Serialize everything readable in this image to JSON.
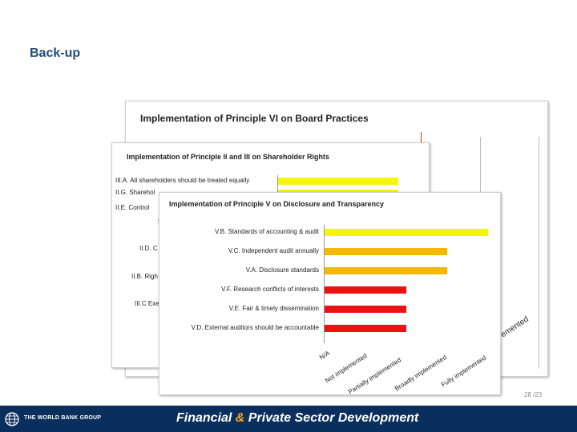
{
  "slide": {
    "title": "Back-up",
    "page_number": "28 /23"
  },
  "footer": {
    "org": "THE WORLD BANK GROUP",
    "tagline_part1": "Financial ",
    "tagline_amp": "&",
    "tagline_part2": " Private Sector Development"
  },
  "card_board": {
    "title": "Implementation of Principle VI on Board Practices",
    "rotated_label": "emented"
  },
  "card_shareholder": {
    "title": "Implementation of Principle II and III on Shareholder Rights",
    "labels": [
      "III.A. All shareholders should be treated equally",
      "II.G. Sharehol",
      "II.E. Control",
      "I",
      "II.D. C",
      "II.B. Righ",
      "III.C Exer"
    ]
  },
  "chart_data": {
    "type": "bar",
    "title": "Implementation of Principle V on Disclosure and Transparency",
    "categories": [
      "V.B. Standards of accounting & audit",
      "V.C. Independent audit annually",
      "V.A. Disclosure standards",
      "V.F. Research conflicts of interests",
      "V.E. Fair & timely dissemination",
      "V.D. External auditors should be accountable"
    ],
    "values": [
      4,
      3,
      3,
      2,
      2,
      2
    ],
    "colors": [
      "#f5f50a",
      "#f5b800",
      "#f5b800",
      "#ee1111",
      "#ee1111",
      "#ee1111"
    ],
    "x_tick_labels": [
      "N/A",
      "Not implemented",
      "Partially implemented",
      "Broadly implemented",
      "Fully implemented"
    ],
    "xlim": [
      0,
      4
    ]
  }
}
